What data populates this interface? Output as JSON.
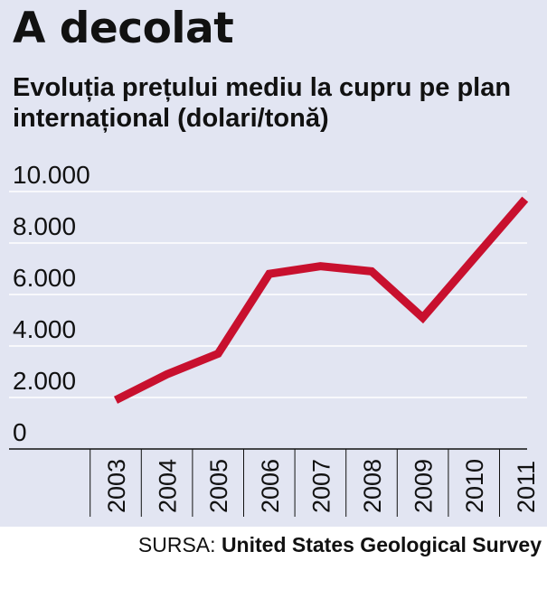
{
  "title": "A decolat",
  "subtitle": "Evoluția prețului mediu la cupru pe plan internațional (dolari/tonă)",
  "source": {
    "label": "SURSA:",
    "name": "United States Geological Survey"
  },
  "colors": {
    "background": "#e2e5f2",
    "line": "#c8102e",
    "grid": "#ffffff",
    "text": "#111111"
  },
  "chart_data": {
    "type": "line",
    "title": "Evoluția prețului mediu la cupru pe plan internațional (dolari/tonă)",
    "xlabel": "",
    "ylabel": "",
    "categories": [
      "2003",
      "2004",
      "2005",
      "2006",
      "2007",
      "2008",
      "2009",
      "2010",
      "2011"
    ],
    "series": [
      {
        "values": [
          1900,
          2900,
          3700,
          6800,
          7100,
          6900,
          5100,
          7400,
          9700
        ]
      }
    ],
    "ylim": [
      0,
      10000
    ],
    "yticks": [
      0,
      2000,
      4000,
      6000,
      8000,
      10000
    ],
    "ytick_labels": [
      "0",
      "2.000",
      "4.000",
      "6.000",
      "8.000",
      "10.000"
    ],
    "grid": true,
    "legend": "none"
  }
}
